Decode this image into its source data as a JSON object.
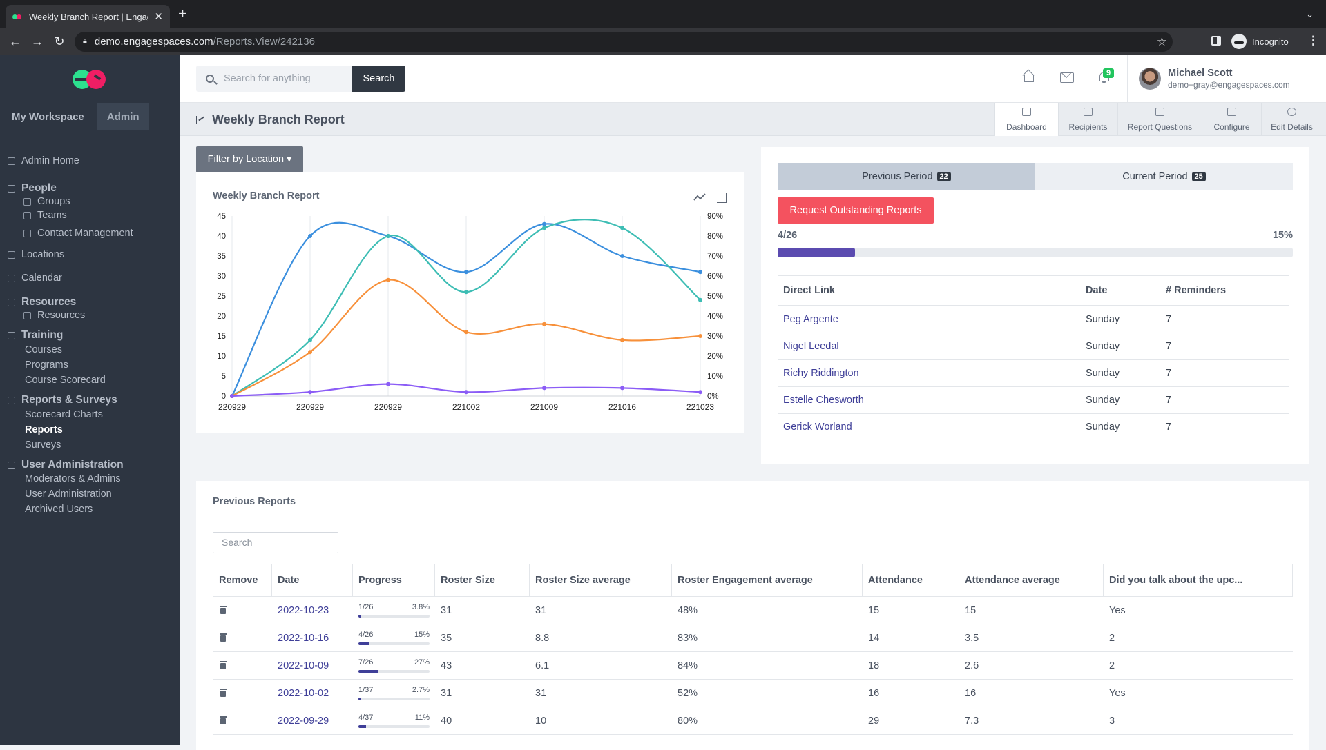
{
  "browser": {
    "tab_title": "Weekly Branch Report | Engage",
    "url_host": "demo.engagespaces.com",
    "url_path": "/Reports.View/242136",
    "profile": "Incognito"
  },
  "sidebar": {
    "tabs": [
      "My Workspace",
      "Admin"
    ],
    "items": [
      {
        "label": "Admin Home",
        "type": "top",
        "icon": "gear-icon"
      },
      {
        "label": "People",
        "type": "header",
        "icon": "people-icon"
      },
      {
        "label": "Groups",
        "type": "sub",
        "icon": "groups-icon"
      },
      {
        "label": "Teams",
        "type": "sub",
        "icon": "teams-icon"
      },
      {
        "label": "Contact Management",
        "type": "sub",
        "icon": "contact-icon"
      },
      {
        "label": "Locations",
        "type": "top",
        "icon": "location-icon"
      },
      {
        "label": "Calendar",
        "type": "top",
        "icon": "calendar-icon"
      },
      {
        "label": "Resources",
        "type": "header",
        "icon": "resources-icon"
      },
      {
        "label": "Resources",
        "type": "sub",
        "icon": "resources-icon"
      },
      {
        "label": "Training",
        "type": "header",
        "icon": "training-icon"
      },
      {
        "label": "Courses",
        "type": "sub2"
      },
      {
        "label": "Programs",
        "type": "sub2"
      },
      {
        "label": "Course Scorecard",
        "type": "sub2"
      },
      {
        "label": "Reports & Surveys",
        "type": "header",
        "icon": "chart-icon"
      },
      {
        "label": "Scorecard Charts",
        "type": "sub2"
      },
      {
        "label": "Reports",
        "type": "sub2",
        "selected": true
      },
      {
        "label": "Surveys",
        "type": "sub2"
      },
      {
        "label": "User Administration",
        "type": "header",
        "icon": "user-admin-icon"
      },
      {
        "label": "Moderators & Admins",
        "type": "sub2"
      },
      {
        "label": "User Administration",
        "type": "sub2"
      },
      {
        "label": "Archived Users",
        "type": "sub2"
      }
    ]
  },
  "topbar": {
    "search_placeholder": "Search for anything",
    "search_button": "Search",
    "notification_count": "9",
    "user_name": "Michael Scott",
    "user_email": "demo+gray@engagespaces.com"
  },
  "page": {
    "title": "Weekly Branch Report",
    "tabs": [
      "Dashboard",
      "Recipients",
      "Report Questions",
      "Configure",
      "Edit Details"
    ],
    "filter_button": "Filter by Location"
  },
  "chart_data": {
    "type": "line",
    "title": "Weekly Branch Report",
    "x": [
      "220929",
      "220929",
      "220929",
      "221002",
      "221009",
      "221016",
      "221023"
    ],
    "y_left_ticks": [
      "45",
      "40",
      "35",
      "30",
      "25",
      "20",
      "15",
      "10",
      "5",
      "0"
    ],
    "y_right_ticks": [
      "90%",
      "80%",
      "70%",
      "60%",
      "50%",
      "40%",
      "30%",
      "20%",
      "10%",
      "0%"
    ],
    "ylim": [
      0,
      45
    ],
    "series": [
      {
        "color": "#3b8fde",
        "values": [
          0,
          40,
          40,
          31,
          43,
          35,
          31
        ]
      },
      {
        "color": "#3dbdb4",
        "values": [
          0,
          14,
          40,
          26,
          42,
          42,
          24
        ]
      },
      {
        "color": "#f7903a",
        "values": [
          0,
          11,
          29,
          16,
          18,
          14,
          15
        ]
      },
      {
        "color": "#8b5cf6",
        "values": [
          0,
          1,
          3,
          1,
          2,
          2,
          1
        ]
      }
    ],
    "grid": "vertical"
  },
  "period": {
    "previous_label": "Previous Period",
    "previous_count": "22",
    "current_label": "Current Period",
    "current_count": "25",
    "request_button": "Request Outstanding Reports",
    "progress_label": "4/26",
    "progress_pct_text": "15%",
    "progress_value": 0.15,
    "columns": [
      "Direct Link",
      "Date",
      "# Reminders"
    ],
    "rows": [
      {
        "name": "Peg Argente",
        "date": "Sunday",
        "reminders": "7"
      },
      {
        "name": "Nigel Leedal",
        "date": "Sunday",
        "reminders": "7"
      },
      {
        "name": "Richy Riddington",
        "date": "Sunday",
        "reminders": "7"
      },
      {
        "name": "Estelle Chesworth",
        "date": "Sunday",
        "reminders": "7"
      },
      {
        "name": "Gerick Worland",
        "date": "Sunday",
        "reminders": "7"
      }
    ]
  },
  "previous_reports": {
    "title": "Previous Reports",
    "search_placeholder": "Search",
    "columns": [
      "Remove",
      "Date",
      "Progress",
      "Roster Size",
      "Roster Size average",
      "Roster Engagement average",
      "Attendance",
      "Attendance average",
      "Did you talk about the upc..."
    ],
    "rows": [
      {
        "date": "2022-10-23",
        "prog": "1/26",
        "pct": "3.8%",
        "pv": 0.038,
        "roster": "31",
        "ravg": "31",
        "eng": "48%",
        "att": "15",
        "aavg": "15",
        "talk": "Yes"
      },
      {
        "date": "2022-10-16",
        "prog": "4/26",
        "pct": "15%",
        "pv": 0.15,
        "roster": "35",
        "ravg": "8.8",
        "eng": "83%",
        "att": "14",
        "aavg": "3.5",
        "talk": "2"
      },
      {
        "date": "2022-10-09",
        "prog": "7/26",
        "pct": "27%",
        "pv": 0.27,
        "roster": "43",
        "ravg": "6.1",
        "eng": "84%",
        "att": "18",
        "aavg": "2.6",
        "talk": "2"
      },
      {
        "date": "2022-10-02",
        "prog": "1/37",
        "pct": "2.7%",
        "pv": 0.027,
        "roster": "31",
        "ravg": "31",
        "eng": "52%",
        "att": "16",
        "aavg": "16",
        "talk": "Yes"
      },
      {
        "date": "2022-09-29",
        "prog": "4/37",
        "pct": "11%",
        "pv": 0.11,
        "roster": "40",
        "ravg": "10",
        "eng": "80%",
        "att": "29",
        "aavg": "7.3",
        "talk": "3"
      }
    ]
  }
}
